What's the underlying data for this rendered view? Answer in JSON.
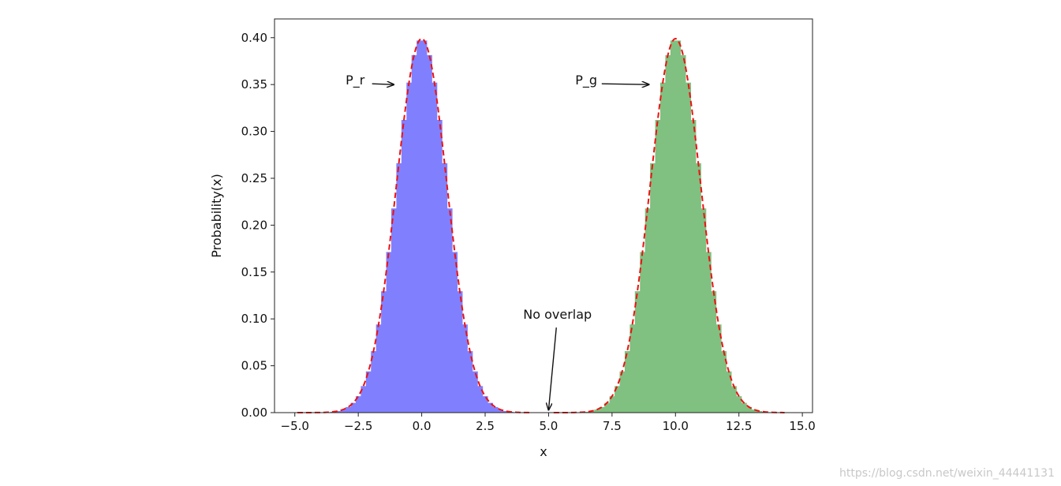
{
  "chart_data": {
    "type": "histogram",
    "xlabel": "x",
    "ylabel": "Probability(x)",
    "xlim": [
      -5.8,
      15.4
    ],
    "ylim": [
      0,
      0.42
    ],
    "xticks": [
      -5.0,
      -2.5,
      0.0,
      2.5,
      5.0,
      7.5,
      10.0,
      12.5,
      15.0
    ],
    "xtick_labels": [
      "−5.0",
      "−2.5",
      "0.0",
      "2.5",
      "5.0",
      "7.5",
      "10.0",
      "12.5",
      "15.0"
    ],
    "yticks": [
      0.0,
      0.05,
      0.1,
      0.15,
      0.2,
      0.25,
      0.3,
      0.35,
      0.4
    ],
    "ytick_labels": [
      "0.00",
      "0.05",
      "0.10",
      "0.15",
      "0.20",
      "0.25",
      "0.30",
      "0.35",
      "0.40"
    ],
    "grid": false,
    "series": [
      {
        "name": "P_r",
        "kind": "histogram",
        "mean": 0,
        "std": 1,
        "range": [
          -4.0,
          4.0
        ],
        "bins": 40,
        "color": "#8080ff"
      },
      {
        "name": "P_g",
        "kind": "histogram",
        "mean": 10,
        "std": 1,
        "range": [
          6.0,
          14.0
        ],
        "bins": 40,
        "color": "#80c080"
      },
      {
        "kind": "density-curve",
        "style": "dashed",
        "color": "#ee1111",
        "segments": [
          [
            -4.9,
            4.3
          ],
          [
            5.2,
            14.3
          ]
        ]
      }
    ],
    "annotations": [
      {
        "text": "P_r",
        "x": -3.0,
        "y": 0.35,
        "arrow_to": [
          -1.1,
          0.35
        ]
      },
      {
        "text": "P_g",
        "x": 6.05,
        "y": 0.35,
        "arrow_to": [
          8.95,
          0.35
        ]
      },
      {
        "text": "No overlap",
        "x": 4.0,
        "y": 0.1,
        "arrow_to": [
          5.0,
          0.003
        ]
      }
    ]
  },
  "watermark": "https://blog.csdn.net/weixin_44441131"
}
